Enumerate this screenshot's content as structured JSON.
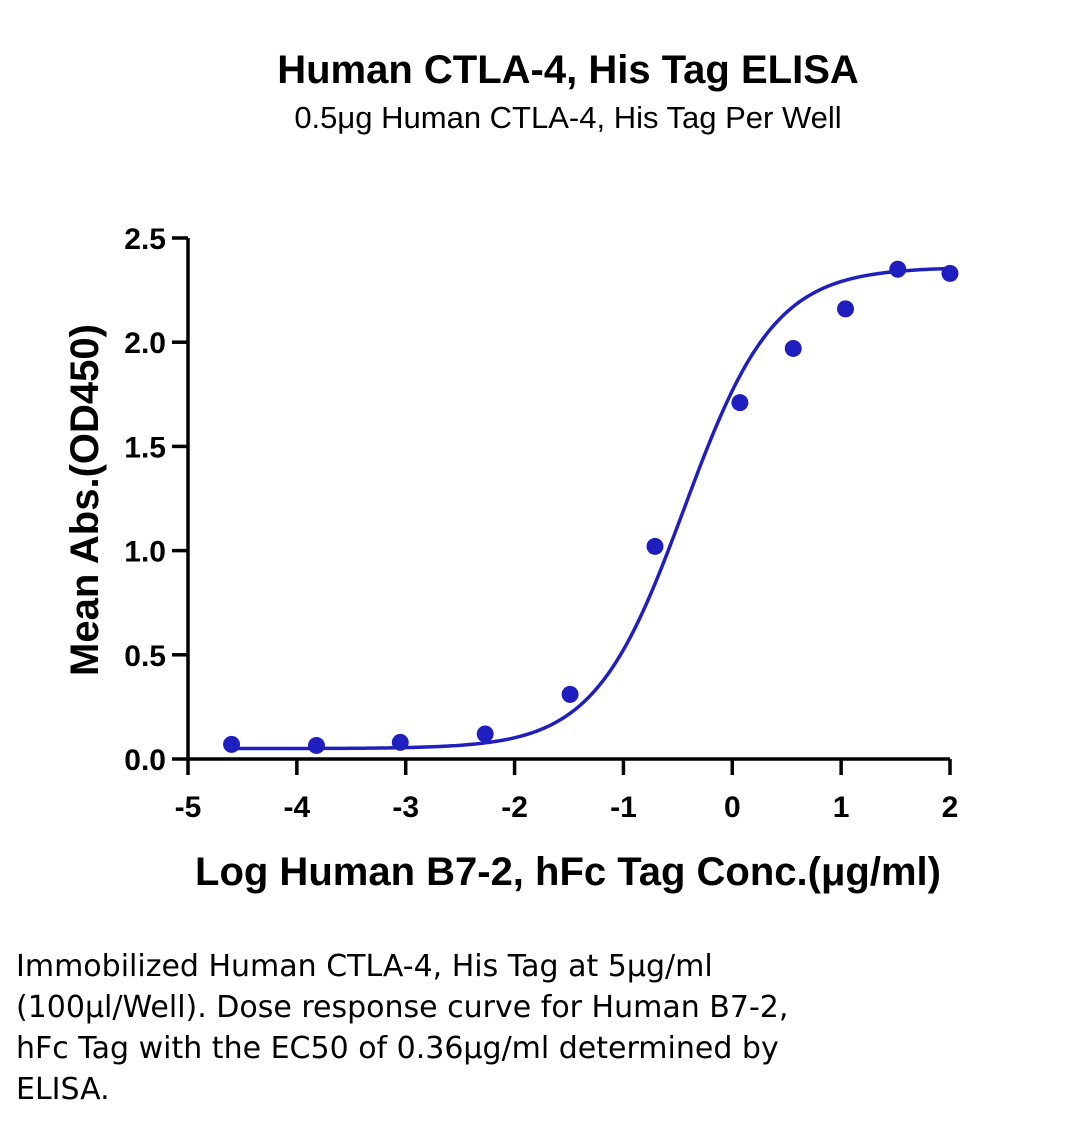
{
  "chart_data": {
    "type": "scatter",
    "title": "Human CTLA-4, His Tag ELISA",
    "subtitle": "0.5μg Human CTLA-4, His Tag Per Well",
    "xlabel": "Log Human B7-2, hFc Tag Conc.(μg/ml)",
    "ylabel": "Mean Abs.(OD450)",
    "xlim": [
      -5,
      2
    ],
    "ylim": [
      0,
      2.5
    ],
    "x_ticks": [
      -5,
      -4,
      -3,
      -2,
      -1,
      0,
      1,
      2
    ],
    "x_tick_labels": [
      "-5",
      "-4",
      "-3",
      "-2",
      "-1",
      "0",
      "1",
      "2"
    ],
    "y_ticks": [
      0,
      0.5,
      1.0,
      1.5,
      2.0,
      2.5
    ],
    "y_tick_labels": [
      "0.0",
      "0.5",
      "1.0",
      "1.5",
      "2.0",
      "2.5"
    ],
    "grid": false,
    "color": "#1f1fbf",
    "series": [
      {
        "x": [
          -4.6,
          -3.82,
          -3.05,
          -2.27,
          -1.49,
          -0.71,
          0.07,
          0.56,
          1.04,
          1.52,
          2.0
        ],
        "y": [
          0.07,
          0.065,
          0.08,
          0.12,
          0.31,
          1.02,
          1.71,
          1.97,
          2.16,
          2.35,
          2.33
        ]
      }
    ],
    "fit": {
      "model": "4PL",
      "bottom": 0.05,
      "top": 2.36,
      "log_ec50": -0.44,
      "hill": 1.05
    }
  },
  "caption": {
    "lines": [
      "Immobilized Human CTLA-4, His Tag at 5μg/ml",
      "(100μl/Well). Dose response curve for Human B7-2,",
      "hFc Tag with the EC50 of 0.36μg/ml determined by",
      "ELISA."
    ]
  }
}
